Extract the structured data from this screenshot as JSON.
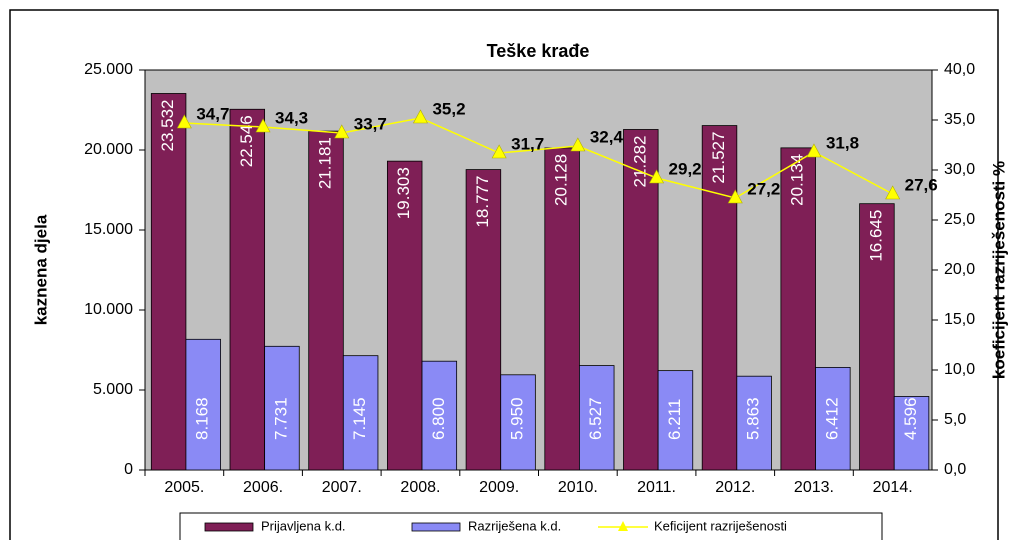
{
  "chart_data": {
    "type": "bar",
    "title": "Teške krađe",
    "y_label": "kaznena djela",
    "y2_label": "koeficijent razriješenosti %",
    "categories": [
      "2005.",
      "2006.",
      "2007.",
      "2008.",
      "2009.",
      "2010.",
      "2011.",
      "2012.",
      "2013.",
      "2014."
    ],
    "series": [
      {
        "name": "Prijavljena k.d.",
        "color": "#7f1f56",
        "type": "bar",
        "values": [
          23532,
          22546,
          21181,
          19303,
          18777,
          20128,
          21282,
          21527,
          20134,
          16645
        ],
        "value_labels": [
          "23.532",
          "22.546",
          "21.181",
          "19.303",
          "18.777",
          "20.128",
          "21.282",
          "21.527",
          "20.134",
          "16.645"
        ]
      },
      {
        "name": "Razriješena k.d.",
        "color": "#8a8af5",
        "type": "bar",
        "values": [
          8168,
          7731,
          7145,
          6800,
          5950,
          6527,
          6211,
          5863,
          6412,
          4596
        ],
        "value_labels": [
          "8.168",
          "7.731",
          "7.145",
          "6.800",
          "5.950",
          "6.527",
          "6.211",
          "5.863",
          "6.412",
          "4.596"
        ]
      },
      {
        "name": "Keficijent razriješenosti",
        "color": "#ffff00",
        "type": "line",
        "axis": "y2",
        "values": [
          34.7,
          34.3,
          33.7,
          35.2,
          31.7,
          32.4,
          29.2,
          27.2,
          31.8,
          27.6
        ],
        "value_labels": [
          "34,7",
          "34,3",
          "33,7",
          "35,2",
          "31,7",
          "32,4",
          "29,2",
          "27,2",
          "31,8",
          "27,6"
        ]
      }
    ],
    "ylim": [
      0,
      25000
    ],
    "yticks": [
      0,
      {
        "value": 5000,
        "label": "5.000"
      },
      {
        "value": 10000,
        "label": "10.000"
      },
      {
        "value": 15000,
        "label": "15.000"
      },
      {
        "value": 20000,
        "label": "20.000"
      },
      {
        "value": 25000,
        "label": "25.000"
      }
    ],
    "y2lim": [
      0,
      40
    ],
    "y2ticks": [
      {
        "value": 0,
        "label": "0,0"
      },
      {
        "value": 5,
        "label": "5,0"
      },
      {
        "value": 10,
        "label": "10,0"
      },
      {
        "value": 15,
        "label": "15,0"
      },
      {
        "value": 20,
        "label": "20,0"
      },
      {
        "value": 25,
        "label": "25,0"
      },
      {
        "value": 30,
        "label": "30,0"
      },
      {
        "value": 35,
        "label": "35,0"
      },
      {
        "value": 40,
        "label": "40,0"
      }
    ],
    "legend": "bottom",
    "plot_background": "#c0c0c0"
  }
}
